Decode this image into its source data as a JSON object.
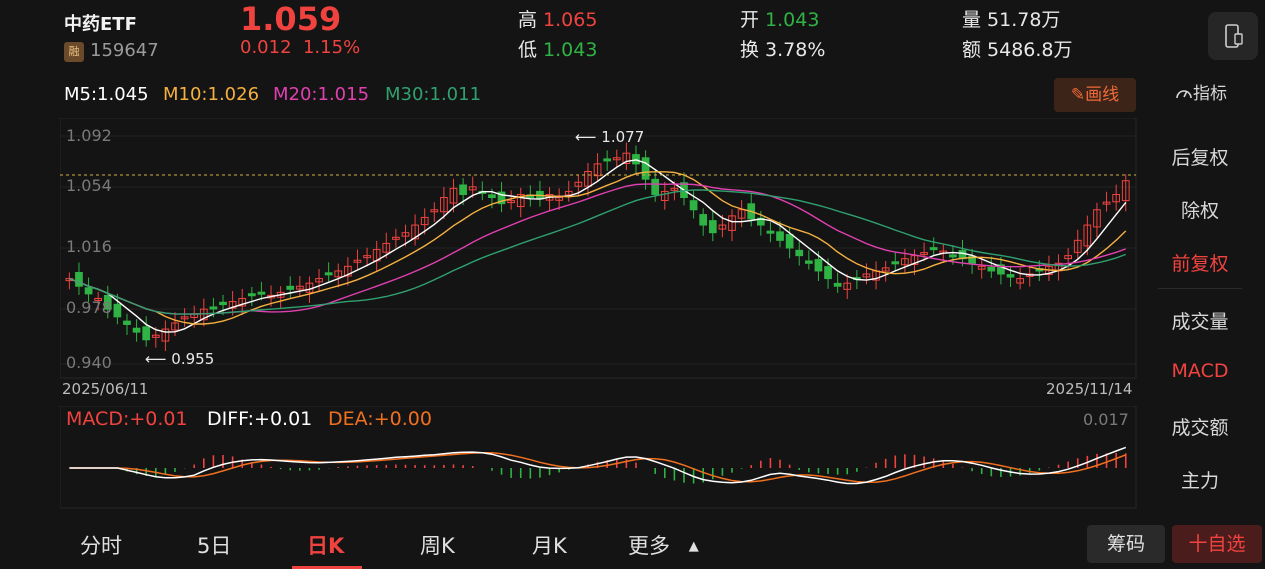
{
  "header": {
    "name": "中药ETF",
    "margin_tag": "融",
    "code": "159647",
    "price": "1.059",
    "change": "0.012",
    "change_pct": "1.15%",
    "high_label": "高",
    "high": "1.065",
    "low_label": "低",
    "low": "1.043",
    "open_label": "开",
    "open": "1.043",
    "turnover_label": "换",
    "turnover": "3.78%",
    "volume_label": "量",
    "volume": "51.78万",
    "amount_label": "额",
    "amount": "5486.8万"
  },
  "ma": {
    "m5": "M5:1.045",
    "m10": "M10:1.026",
    "m20": "M20:1.015",
    "m30": "M30:1.011",
    "draw_button": "画线",
    "indicator_button": "指标"
  },
  "colors": {
    "up": "#f0433f",
    "down": "#2fb344",
    "m5": "#ffffff",
    "m10": "#f5b040",
    "m20": "#e040b0",
    "m30": "#30a070",
    "dif": "#ffffff",
    "dea": "#f07020"
  },
  "chart": {
    "y_ticks": [
      "1.092",
      "1.054",
      "1.016",
      "0.978",
      "0.940"
    ],
    "start_date": "2025/06/11",
    "end_date": "2025/11/14",
    "high_marker": "1.077",
    "low_marker": "0.955",
    "macd_label": "MACD:+0.01",
    "diff_label": "DIFF:+0.01",
    "dea_label": "DEA:+0.00",
    "macd_max": "0.017"
  },
  "right_panel": [
    {
      "label": "后复权",
      "active": false
    },
    {
      "label": "除权",
      "active": false
    },
    {
      "label": "前复权",
      "active": true
    },
    {
      "label": "成交量",
      "active": false
    },
    {
      "label": "MACD",
      "active": true
    },
    {
      "label": "成交额",
      "active": false
    },
    {
      "label": "主力",
      "active": false
    }
  ],
  "tabs": [
    {
      "label": "分时"
    },
    {
      "label": "5日"
    },
    {
      "label": "日K"
    },
    {
      "label": "周K"
    },
    {
      "label": "月K"
    },
    {
      "label": "更多"
    }
  ],
  "buttons": {
    "chips": "筹码",
    "add_watch": "十自选"
  }
}
